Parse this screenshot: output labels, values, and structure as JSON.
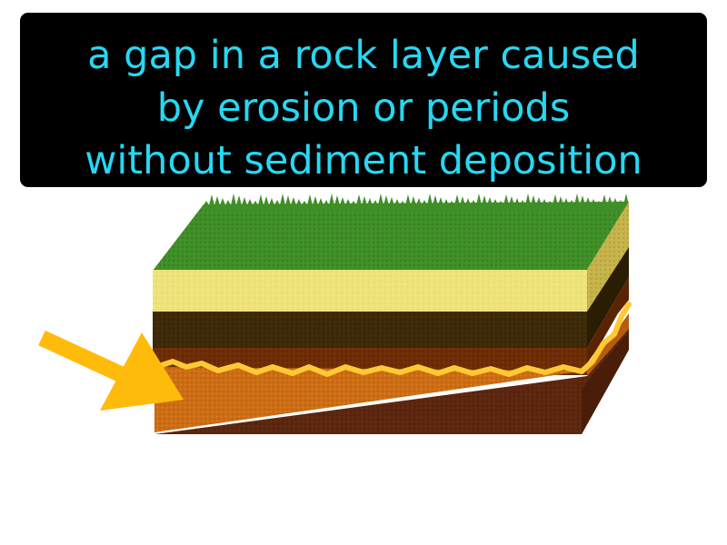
{
  "definition": {
    "lines": [
      "a gap in a rock layer caused",
      "by erosion or periods",
      "without sediment deposition"
    ]
  },
  "illustration": {
    "subject": "unconformity-rock-layers",
    "layers": [
      {
        "name": "grass",
        "color": "#3f8f27"
      },
      {
        "name": "sand",
        "color": "#eee27a"
      },
      {
        "name": "dark-soil",
        "color": "#3e2a08"
      },
      {
        "name": "brown-soil",
        "color": "#6e2d04"
      },
      {
        "name": "erosion-boundary",
        "color": "#ffc933"
      },
      {
        "name": "orange-rock",
        "color": "#cd6e14"
      },
      {
        "name": "bedrock",
        "color": "#5c260f"
      }
    ],
    "arrow_color": "#ffbb0c"
  }
}
